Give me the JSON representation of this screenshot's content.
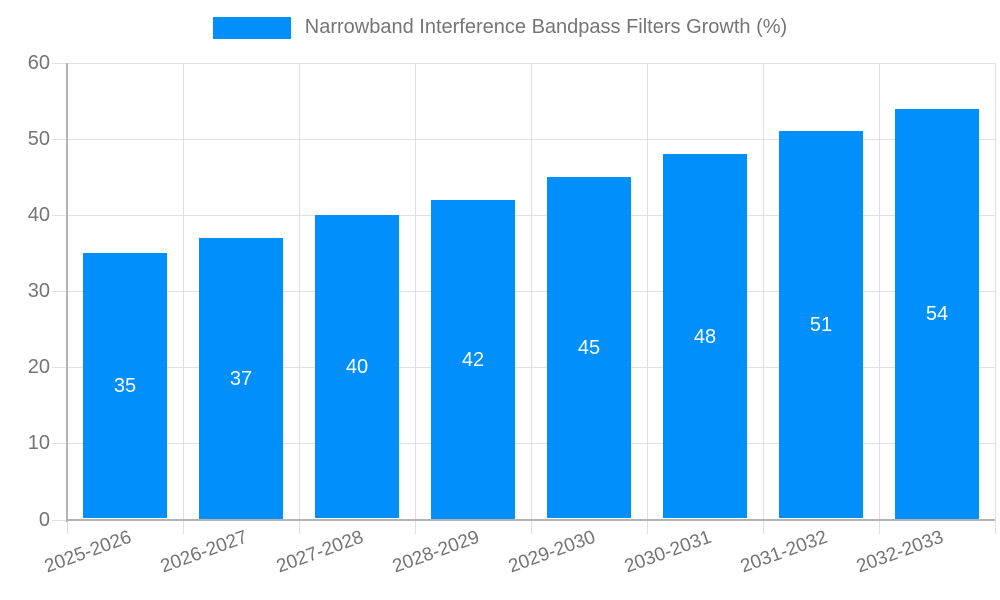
{
  "legend": {
    "label": "Narrowband Interference Bandpass Filters Growth (%)"
  },
  "chart_data": {
    "type": "bar",
    "title": "Narrowband Interference Bandpass Filters Growth (%)",
    "categories": [
      "2025-2026",
      "2026-2027",
      "2027-2028",
      "2028-2029",
      "2029-2030",
      "2030-2031",
      "2031-2032",
      "2032-2033"
    ],
    "series": [
      {
        "name": "Narrowband Interference Bandpass Filters Growth (%)",
        "values": [
          35,
          37,
          40,
          42,
          45,
          48,
          51,
          54
        ]
      }
    ],
    "data_labels": [
      "35",
      "37",
      "40",
      "42",
      "45",
      "48",
      "51",
      "54"
    ],
    "xlabel": "",
    "ylabel": "",
    "ylim": [
      0,
      60
    ],
    "y_ticks": [
      0,
      10,
      20,
      30,
      40,
      50,
      60
    ],
    "grid": true,
    "legend_position": "top",
    "colors": {
      "bar": "#008FFB",
      "data_label": "#ffffff",
      "axis_text": "#757575",
      "gridline": "#e0e0e0",
      "axis_line": "#b3b3b3"
    }
  }
}
